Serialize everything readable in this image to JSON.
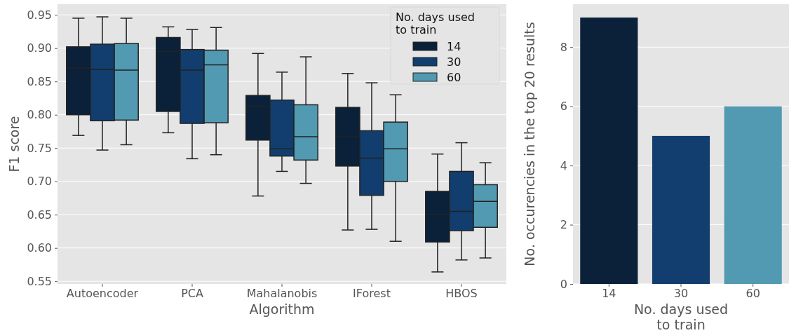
{
  "chart_data": [
    {
      "type": "box",
      "xlabel": "Algorithm",
      "ylabel": "F1 score",
      "legend_title": "No. days used\nto train",
      "legend": "top right",
      "grid": "y",
      "categories": [
        "Autoencoder",
        "PCA",
        "Mahalanobis",
        "IForest",
        "HBOS"
      ],
      "ylim": [
        0.546,
        0.966
      ],
      "yticks": [
        {
          "value": 0.55,
          "label": "0.55"
        },
        {
          "value": 0.6,
          "label": "0.60"
        },
        {
          "value": 0.65,
          "label": "0.65"
        },
        {
          "value": 0.7,
          "label": "0.70"
        },
        {
          "value": 0.75,
          "label": "0.75"
        },
        {
          "value": 0.8,
          "label": "0.80"
        },
        {
          "value": 0.85,
          "label": "0.85"
        },
        {
          "value": 0.9,
          "label": "0.90"
        },
        {
          "value": 0.95,
          "label": "0.95"
        }
      ],
      "series": [
        {
          "name": "14",
          "color": "#0b2039",
          "boxes": [
            {
              "low": 0.769,
              "q1": 0.8,
              "median": 0.87,
              "q3": 0.902,
              "high": 0.945
            },
            {
              "low": 0.773,
              "q1": 0.805,
              "median": 0.895,
              "q3": 0.916,
              "high": 0.932
            },
            {
              "low": 0.678,
              "q1": 0.762,
              "median": 0.812,
              "q3": 0.829,
              "high": 0.892
            },
            {
              "low": 0.627,
              "q1": 0.723,
              "median": 0.767,
              "q3": 0.811,
              "high": 0.862
            },
            {
              "low": 0.564,
              "q1": 0.609,
              "median": 0.65,
              "q3": 0.685,
              "high": 0.741
            }
          ]
        },
        {
          "name": "30",
          "color": "#113e6e",
          "boxes": [
            {
              "low": 0.747,
              "q1": 0.791,
              "median": 0.868,
              "q3": 0.906,
              "high": 0.947
            },
            {
              "low": 0.734,
              "q1": 0.787,
              "median": 0.867,
              "q3": 0.898,
              "high": 0.928
            },
            {
              "low": 0.715,
              "q1": 0.738,
              "median": 0.749,
              "q3": 0.822,
              "high": 0.864
            },
            {
              "low": 0.628,
              "q1": 0.679,
              "median": 0.735,
              "q3": 0.776,
              "high": 0.848
            },
            {
              "low": 0.582,
              "q1": 0.626,
              "median": 0.655,
              "q3": 0.715,
              "high": 0.758
            }
          ]
        },
        {
          "name": "60",
          "color": "#519ab1",
          "boxes": [
            {
              "low": 0.755,
              "q1": 0.792,
              "median": 0.867,
              "q3": 0.907,
              "high": 0.945
            },
            {
              "low": 0.74,
              "q1": 0.788,
              "median": 0.875,
              "q3": 0.897,
              "high": 0.931
            },
            {
              "low": 0.697,
              "q1": 0.732,
              "median": 0.767,
              "q3": 0.815,
              "high": 0.887
            },
            {
              "low": 0.61,
              "q1": 0.7,
              "median": 0.749,
              "q3": 0.789,
              "high": 0.83
            },
            {
              "low": 0.585,
              "q1": 0.631,
              "median": 0.67,
              "q3": 0.695,
              "high": 0.728
            }
          ]
        }
      ]
    },
    {
      "type": "bar",
      "xlabel": "No. days used\nto train",
      "ylabel": "No. occurencies in the top 20 results",
      "grid": "y",
      "categories": [
        "14",
        "30",
        "60"
      ],
      "values": [
        9,
        5,
        6
      ],
      "colors": [
        "#0b2039",
        "#113e6e",
        "#519ab1"
      ],
      "ylim": [
        0,
        9.45
      ],
      "yticks": [
        0,
        2,
        4,
        6,
        8
      ]
    }
  ]
}
